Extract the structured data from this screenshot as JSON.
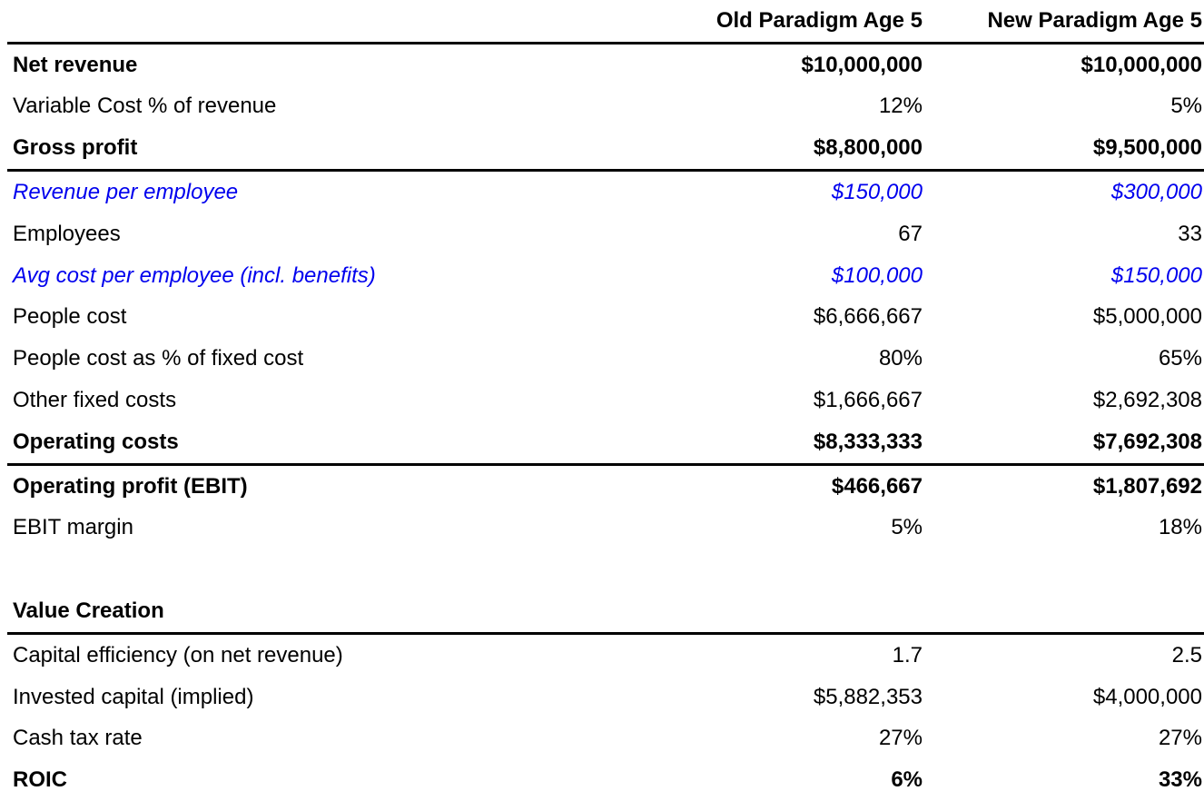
{
  "colors": {
    "text": "#000000",
    "highlight_blue": "#0000EE",
    "rule": "#000000",
    "background": "#FFFFFF"
  },
  "table": {
    "header": {
      "label": "",
      "old": "Old Paradigm Age 5",
      "new": "New Paradigm Age 5"
    },
    "rows": [
      {
        "label": "Net revenue",
        "old": "$10,000,000",
        "new": "$10,000,000",
        "style": "bold",
        "rule_below": false
      },
      {
        "label": "Variable Cost % of revenue",
        "old": "12%",
        "new": "5%",
        "style": "normal",
        "rule_below": false
      },
      {
        "label": "Gross profit",
        "old": "$8,800,000",
        "new": "$9,500,000",
        "style": "bold",
        "rule_below": true
      },
      {
        "label": "Revenue per employee",
        "old": "$150,000",
        "new": "$300,000",
        "style": "blue-italic",
        "rule_below": false
      },
      {
        "label": "Employees",
        "old": "67",
        "new": "33",
        "style": "normal",
        "rule_below": false
      },
      {
        "label": "Avg cost per employee (incl. benefits)",
        "old": "$100,000",
        "new": "$150,000",
        "style": "blue-italic",
        "rule_below": false
      },
      {
        "label": "People cost",
        "old": "$6,666,667",
        "new": "$5,000,000",
        "style": "normal",
        "rule_below": false
      },
      {
        "label": "People cost as % of fixed cost",
        "old": "80%",
        "new": "65%",
        "style": "normal",
        "rule_below": false
      },
      {
        "label": "Other fixed costs",
        "old": "$1,666,667",
        "new": "$2,692,308",
        "style": "normal",
        "rule_below": false
      },
      {
        "label": "Operating costs",
        "old": "$8,333,333",
        "new": "$7,692,308",
        "style": "bold",
        "rule_below": true
      },
      {
        "label": "Operating profit (EBIT)",
        "old": "$466,667",
        "new": "$1,807,692",
        "style": "bold",
        "rule_below": false
      },
      {
        "label": "EBIT margin",
        "old": "5%",
        "new": "18%",
        "style": "normal",
        "rule_below": false
      },
      {
        "label": "",
        "old": "",
        "new": "",
        "style": "spacer",
        "rule_below": false
      },
      {
        "label": "Value Creation",
        "old": "",
        "new": "",
        "style": "bold",
        "rule_below": true
      },
      {
        "label": "Capital efficiency (on net revenue)",
        "old": "1.7",
        "new": "2.5",
        "style": "normal",
        "rule_below": false
      },
      {
        "label": "Invested capital (implied)",
        "old": "$5,882,353",
        "new": "$4,000,000",
        "style": "normal",
        "rule_below": false
      },
      {
        "label": "Cash tax rate",
        "old": "27%",
        "new": "27%",
        "style": "normal",
        "rule_below": false
      },
      {
        "label": "ROIC",
        "old": "6%",
        "new": "33%",
        "style": "bold",
        "rule_below": false
      }
    ]
  }
}
